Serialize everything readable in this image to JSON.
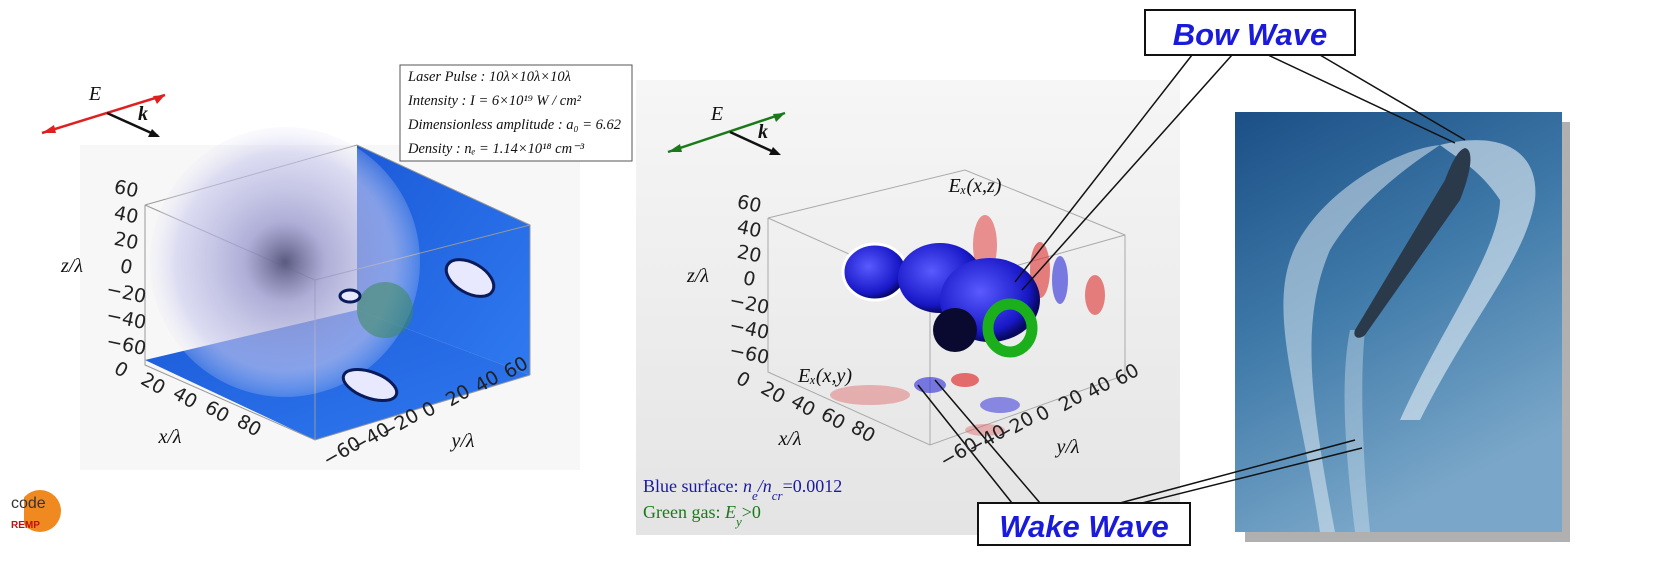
{
  "left_panel": {
    "e_label": "E",
    "k_label": "k",
    "info": [
      "Laser Pulse : 10λ×10λ×10λ",
      "Intensity : I = 6×10¹⁹ W / cm²",
      "Dimensionless amplitude : a₀ = 6.62",
      "Density : nₑ = 1.14×10¹⁸ cm⁻³"
    ],
    "z_label": "z/λ",
    "x_label": "x/λ",
    "y_label": "y/λ",
    "z_ticks": [
      "60",
      "40",
      "20",
      "0",
      "−20",
      "−40",
      "−60"
    ],
    "x_ticks": [
      "0",
      "20",
      "40",
      "60",
      "80"
    ],
    "y_ticks": [
      "−60",
      "−40",
      "−20",
      "0",
      "20",
      "40",
      "60"
    ]
  },
  "middle_panel": {
    "e_label": "E",
    "k_label": "k",
    "ex_xz": "Eₓ(x,z)",
    "ex_xy": "Eₓ(x,y)",
    "z_label": "z/λ",
    "x_label": "x/λ",
    "y_label": "y/λ",
    "z_ticks": [
      "60",
      "40",
      "20",
      "0",
      "−20",
      "−40",
      "−60"
    ],
    "x_ticks": [
      "0",
      "20",
      "40",
      "60",
      "80"
    ],
    "y_ticks": [
      "−60",
      "−40",
      "−20",
      "0",
      "20",
      "40",
      "60"
    ],
    "legend_blue": [
      "Blue surface: ",
      "n",
      "e",
      "/n",
      "cr",
      "=0.0012"
    ],
    "legend_green": [
      "Green gas: ",
      "E",
      "y",
      ">0"
    ]
  },
  "callouts": {
    "bow": "Bow Wave",
    "wake": "Wake Wave"
  },
  "logo": {
    "top": "code",
    "bottom": "REMP"
  }
}
